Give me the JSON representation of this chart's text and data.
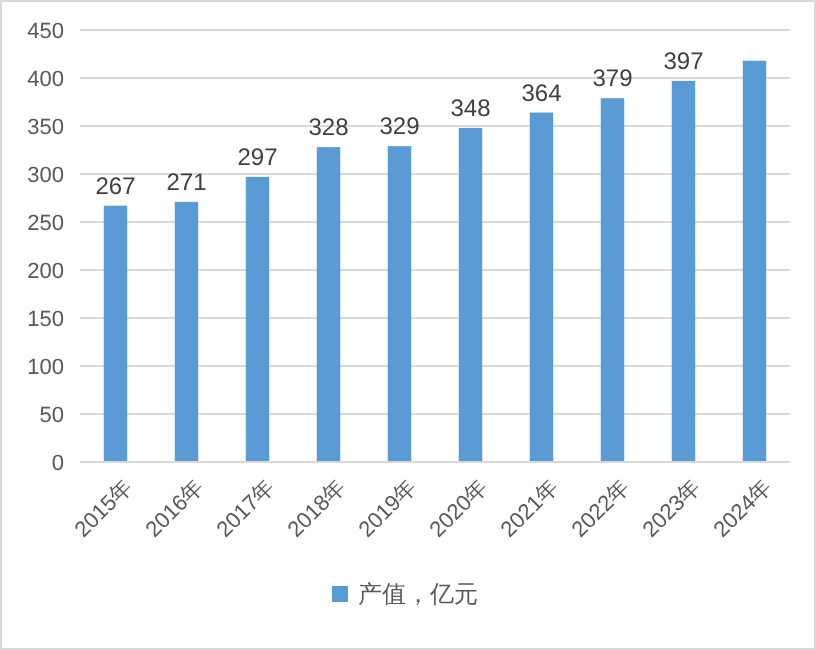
{
  "chart_data": {
    "type": "bar",
    "categories": [
      "2015年",
      "2016年",
      "2017年",
      "2018年",
      "2019年",
      "2020年",
      "2021年",
      "2022年",
      "2023年",
      "2024年"
    ],
    "series": [
      {
        "name": "产值，亿元",
        "color": "#5b9bd5",
        "values": [
          267,
          271,
          297,
          328,
          329,
          348,
          364,
          379,
          397,
          418
        ],
        "value_labels": [
          "267",
          "271",
          "297",
          "328",
          "329",
          "348",
          "364",
          "379",
          "397",
          null
        ]
      }
    ],
    "ylim": [
      0,
      450
    ],
    "yticks": [
      0,
      50,
      100,
      150,
      200,
      250,
      300,
      350,
      400,
      450
    ],
    "grid": "y",
    "legend": "bottom"
  }
}
